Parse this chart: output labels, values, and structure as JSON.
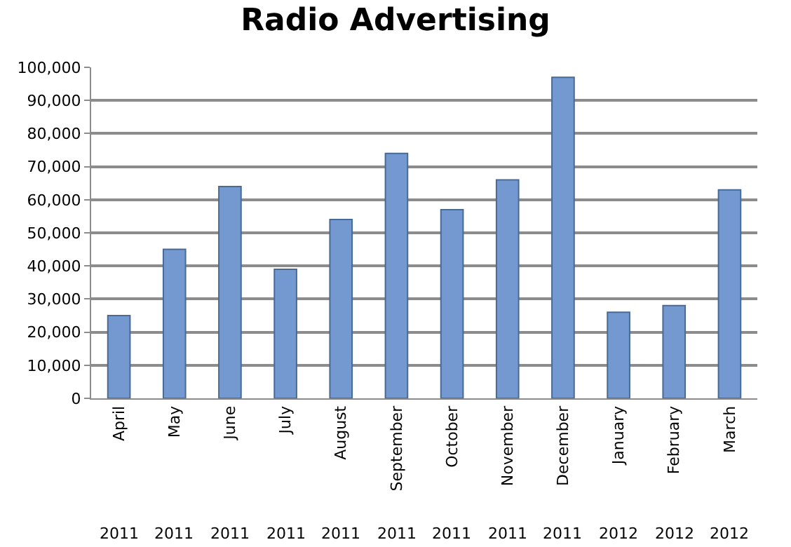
{
  "chart_data": {
    "type": "bar",
    "title": "Radio Advertising",
    "categories": [
      "April",
      "May",
      "June",
      "July",
      "August",
      "September",
      "October",
      "November",
      "December",
      "January",
      "February",
      "March"
    ],
    "values": [
      25000,
      45000,
      64000,
      39000,
      54000,
      74000,
      57000,
      66000,
      97000,
      26000,
      28000,
      63000
    ],
    "color": "#7399d0",
    "ylim": [
      0,
      100000
    ],
    "yticks": [
      0,
      {
        "value": 10000,
        "label": "10,000"
      },
      {
        "value": 20000,
        "label": "20,000"
      },
      {
        "value": 30000,
        "label": "30,000"
      },
      {
        "value": 40000,
        "label": "40,000"
      },
      {
        "value": 50000,
        "label": "50,000"
      },
      {
        "value": 60000,
        "label": "60,000"
      },
      {
        "value": 70000,
        "label": "70,000"
      },
      {
        "value": 80000,
        "label": "80,000"
      },
      {
        "value": 90000,
        "label": "90,000"
      },
      {
        "value": 100000,
        "label": "100,000"
      }
    ],
    "grid": "y",
    "annotations": [
      "2011",
      "2011",
      "2011",
      "2011",
      "2011",
      "2011",
      "2011",
      "2011",
      "2011",
      "2012",
      "2012",
      "2012"
    ]
  }
}
